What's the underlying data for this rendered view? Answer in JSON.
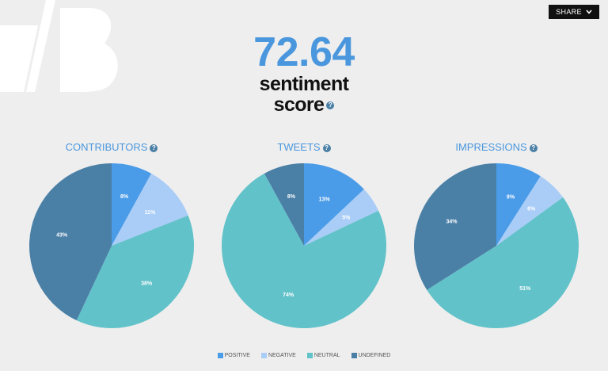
{
  "header": {
    "share_label": "SHARE"
  },
  "score": {
    "value": "72.64",
    "label_line1": "sentiment",
    "label_line2": "score",
    "help_glyph": "?"
  },
  "colors": {
    "positive": "#4b9ce8",
    "negative": "#a9cdf7",
    "neutral": "#62c2c9",
    "undefined": "#4a7fa6",
    "accent": "#4a97de"
  },
  "chart_data": [
    {
      "type": "pie",
      "title": "CONTRIBUTORS",
      "categories": [
        "POSITIVE",
        "NEGATIVE",
        "NEUTRAL",
        "UNDEFINED"
      ],
      "values": [
        8,
        11,
        38,
        43
      ],
      "labels": [
        "8%",
        "11%",
        "38%",
        "43%"
      ]
    },
    {
      "type": "pie",
      "title": "TWEETS",
      "categories": [
        "POSITIVE",
        "NEGATIVE",
        "NEUTRAL",
        "UNDEFINED"
      ],
      "values": [
        13,
        5,
        74,
        8
      ],
      "labels": [
        "13%",
        "5%",
        "74%",
        "8%"
      ]
    },
    {
      "type": "pie",
      "title": "IMPRESSIONS",
      "categories": [
        "POSITIVE",
        "NEGATIVE",
        "NEUTRAL",
        "UNDEFINED"
      ],
      "values": [
        9,
        6,
        51,
        34
      ],
      "labels": [
        "9%",
        "6%",
        "51%",
        "34%"
      ]
    }
  ],
  "legend": [
    "POSITIVE",
    "NEGATIVE",
    "NEUTRAL",
    "UNDEFINED"
  ]
}
